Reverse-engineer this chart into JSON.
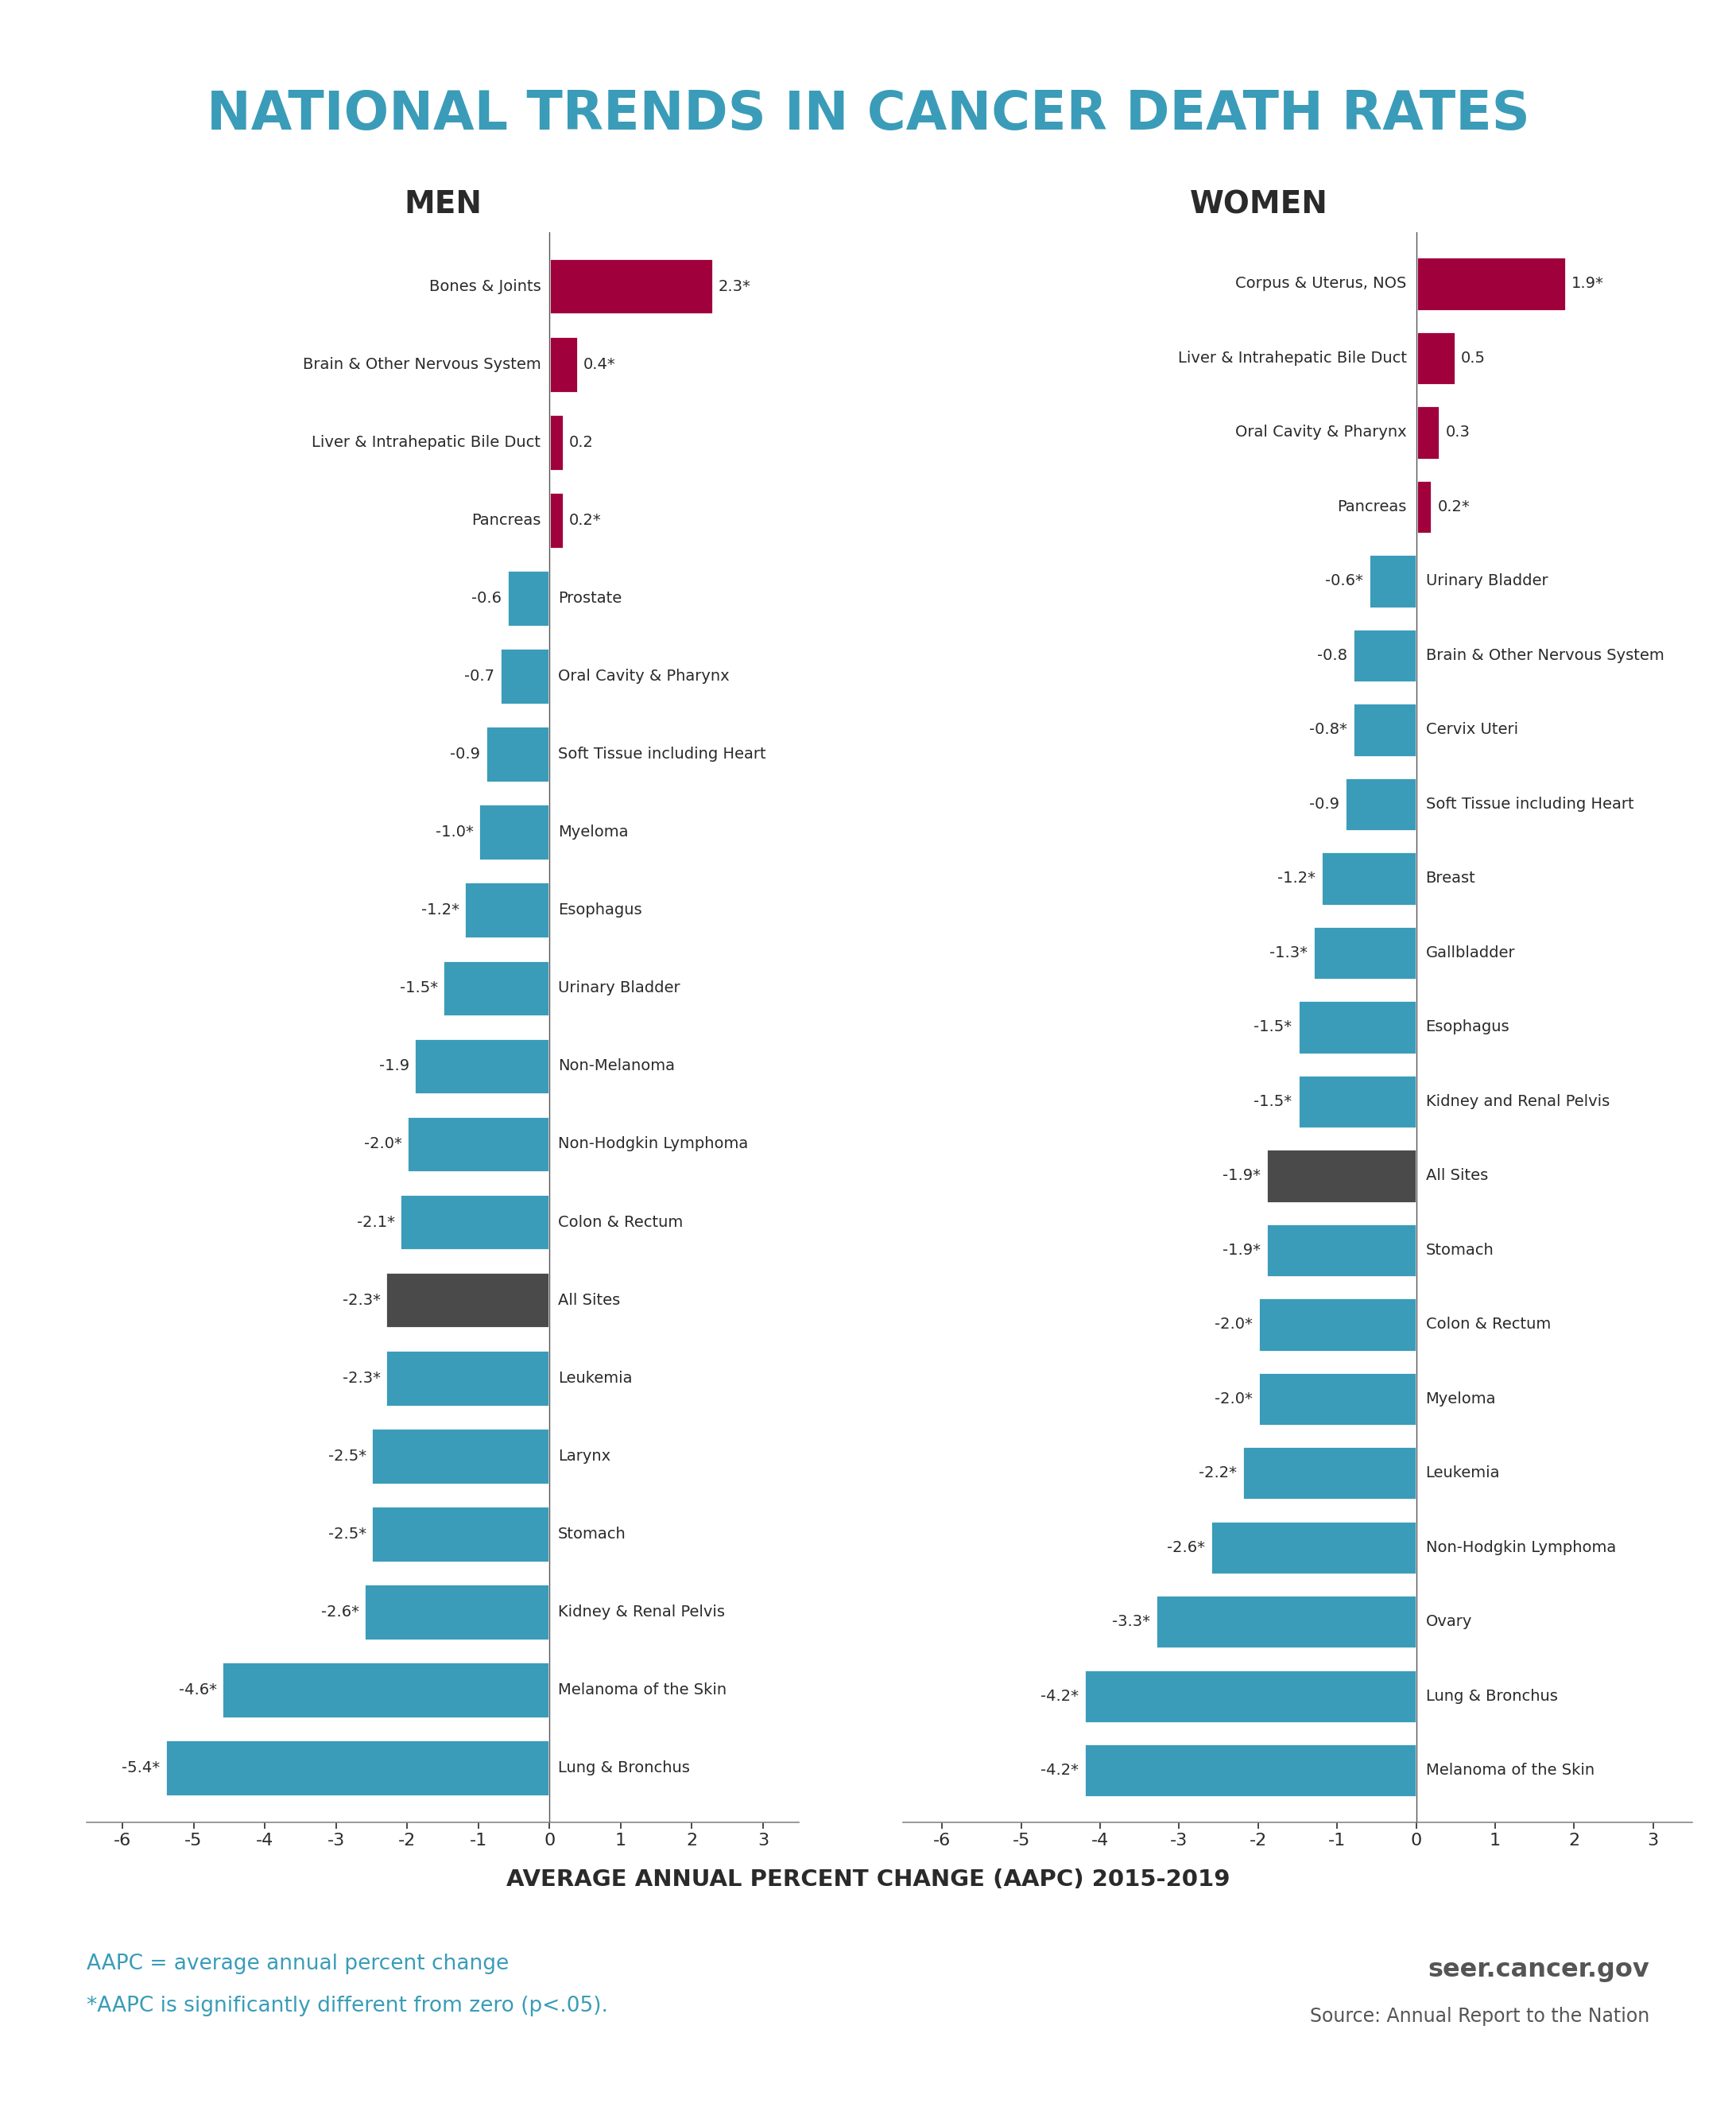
{
  "title": "NATIONAL TRENDS IN CANCER DEATH RATES",
  "title_color": "#3a9cb8",
  "subtitle_x": "AVERAGE ANNUAL PERCENT CHANGE (AAPC) 2015-2019",
  "men_label": "MEN",
  "women_label": "WOMEN",
  "men_data": [
    {
      "label": "Bones & Joints",
      "value": 2.3,
      "display": "2.3*",
      "color": "#a0003c"
    },
    {
      "label": "Brain & Other Nervous System",
      "value": 0.4,
      "display": "0.4*",
      "color": "#a0003c"
    },
    {
      "label": "Liver & Intrahepatic Bile Duct",
      "value": 0.2,
      "display": "0.2",
      "color": "#a0003c"
    },
    {
      "label": "Pancreas",
      "value": 0.2,
      "display": "0.2*",
      "color": "#a0003c"
    },
    {
      "label": "Prostate",
      "value": -0.6,
      "display": "-0.6",
      "color": "#3a9cb8"
    },
    {
      "label": "Oral Cavity & Pharynx",
      "value": -0.7,
      "display": "-0.7",
      "color": "#3a9cb8"
    },
    {
      "label": "Soft Tissue including Heart",
      "value": -0.9,
      "display": "-0.9",
      "color": "#3a9cb8"
    },
    {
      "label": "Myeloma",
      "value": -1.0,
      "display": "-1.0*",
      "color": "#3a9cb8"
    },
    {
      "label": "Esophagus",
      "value": -1.2,
      "display": "-1.2*",
      "color": "#3a9cb8"
    },
    {
      "label": "Urinary Bladder",
      "value": -1.5,
      "display": "-1.5*",
      "color": "#3a9cb8"
    },
    {
      "label": "Non-Melanoma",
      "value": -1.9,
      "display": "-1.9",
      "color": "#3a9cb8"
    },
    {
      "label": "Non-Hodgkin Lymphoma",
      "value": -2.0,
      "display": "-2.0*",
      "color": "#3a9cb8"
    },
    {
      "label": "Colon & Rectum",
      "value": -2.1,
      "display": "-2.1*",
      "color": "#3a9cb8"
    },
    {
      "label": "All Sites",
      "value": -2.3,
      "display": "-2.3*",
      "color": "#4a4a4a"
    },
    {
      "label": "Leukemia",
      "value": -2.3,
      "display": "-2.3*",
      "color": "#3a9cb8"
    },
    {
      "label": "Larynx",
      "value": -2.5,
      "display": "-2.5*",
      "color": "#3a9cb8"
    },
    {
      "label": "Stomach",
      "value": -2.5,
      "display": "-2.5*",
      "color": "#3a9cb8"
    },
    {
      "label": "Kidney & Renal Pelvis",
      "value": -2.6,
      "display": "-2.6*",
      "color": "#3a9cb8"
    },
    {
      "label": "Melanoma of the Skin",
      "value": -4.6,
      "display": "-4.6*",
      "color": "#3a9cb8"
    },
    {
      "label": "Lung & Bronchus",
      "value": -5.4,
      "display": "-5.4*",
      "color": "#3a9cb8"
    }
  ],
  "women_data": [
    {
      "label": "Corpus & Uterus, NOS",
      "value": 1.9,
      "display": "1.9*",
      "color": "#a0003c"
    },
    {
      "label": "Liver & Intrahepatic Bile Duct",
      "value": 0.5,
      "display": "0.5",
      "color": "#a0003c"
    },
    {
      "label": "Oral Cavity & Pharynx",
      "value": 0.3,
      "display": "0.3",
      "color": "#a0003c"
    },
    {
      "label": "Pancreas",
      "value": 0.2,
      "display": "0.2*",
      "color": "#a0003c"
    },
    {
      "label": "Urinary Bladder",
      "value": -0.6,
      "display": "-0.6*",
      "color": "#3a9cb8"
    },
    {
      "label": "Brain & Other Nervous System",
      "value": -0.8,
      "display": "-0.8",
      "color": "#3a9cb8"
    },
    {
      "label": "Cervix Uteri",
      "value": -0.8,
      "display": "-0.8*",
      "color": "#3a9cb8"
    },
    {
      "label": "Soft Tissue including Heart",
      "value": -0.9,
      "display": "-0.9",
      "color": "#3a9cb8"
    },
    {
      "label": "Breast",
      "value": -1.2,
      "display": "-1.2*",
      "color": "#3a9cb8"
    },
    {
      "label": "Gallbladder",
      "value": -1.3,
      "display": "-1.3*",
      "color": "#3a9cb8"
    },
    {
      "label": "Esophagus",
      "value": -1.5,
      "display": "-1.5*",
      "color": "#3a9cb8"
    },
    {
      "label": "Kidney and Renal Pelvis",
      "value": -1.5,
      "display": "-1.5*",
      "color": "#3a9cb8"
    },
    {
      "label": "All Sites",
      "value": -1.9,
      "display": "-1.9*",
      "color": "#4a4a4a"
    },
    {
      "label": "Stomach",
      "value": -1.9,
      "display": "-1.9*",
      "color": "#3a9cb8"
    },
    {
      "label": "Colon & Rectum",
      "value": -2.0,
      "display": "-2.0*",
      "color": "#3a9cb8"
    },
    {
      "label": "Myeloma",
      "value": -2.0,
      "display": "-2.0*",
      "color": "#3a9cb8"
    },
    {
      "label": "Leukemia",
      "value": -2.2,
      "display": "-2.2*",
      "color": "#3a9cb8"
    },
    {
      "label": "Non-Hodgkin Lymphoma",
      "value": -2.6,
      "display": "-2.6*",
      "color": "#3a9cb8"
    },
    {
      "label": "Ovary",
      "value": -3.3,
      "display": "-3.3*",
      "color": "#3a9cb8"
    },
    {
      "label": "Lung & Bronchus",
      "value": -4.2,
      "display": "-4.2*",
      "color": "#3a9cb8"
    },
    {
      "label": "Melanoma of the Skin",
      "value": -4.2,
      "display": "-4.2*",
      "color": "#3a9cb8"
    }
  ],
  "xlim": [
    -6.5,
    3.5
  ],
  "xticks": [
    -6,
    -5,
    -4,
    -3,
    -2,
    -1,
    0,
    1,
    2,
    3
  ],
  "footnote1": "AAPC = average annual percent change",
  "footnote2": "*AAPC is significantly different from zero (p<.05).",
  "footnote_color": "#3a9cb8",
  "website": "seer.cancer.gov",
  "source": "Source: Annual Report to the Nation",
  "bg_color": "#ffffff"
}
